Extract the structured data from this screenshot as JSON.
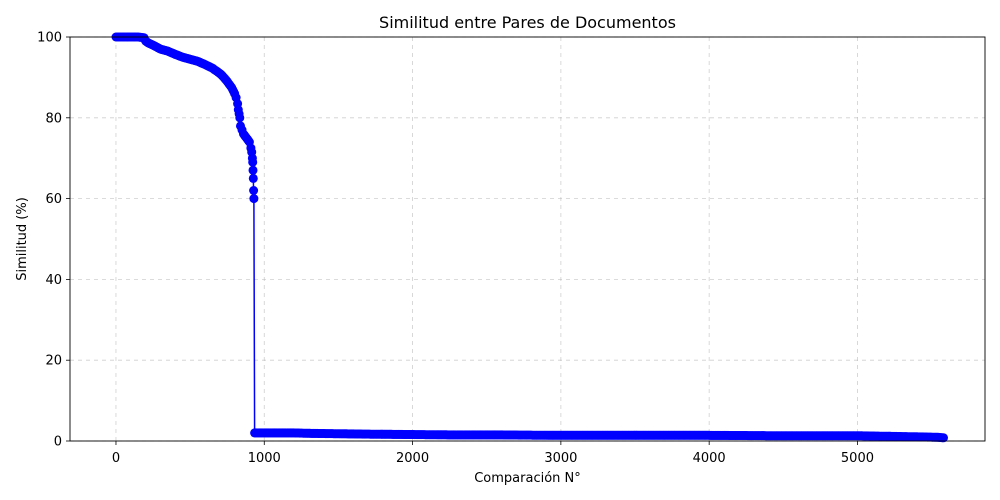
{
  "chart_data": {
    "type": "line",
    "title": "Similitud entre Pares de Documentos",
    "xlabel": "Comparación N°",
    "ylabel": "Similitud (%)",
    "xlim": [
      -310,
      5860
    ],
    "ylim": [
      0,
      100
    ],
    "xticks": [
      0,
      1000,
      2000,
      3000,
      4000,
      5000
    ],
    "yticks": [
      0,
      20,
      40,
      60,
      80,
      100
    ],
    "grid": true,
    "series": [
      {
        "color": "#0000ff",
        "marker": "circle",
        "x": [
          0,
          50,
          100,
          150,
          190,
          200,
          220,
          250,
          300,
          350,
          400,
          450,
          500,
          550,
          600,
          650,
          700,
          720,
          750,
          780,
          800,
          810,
          820,
          825,
          830,
          835,
          840,
          850,
          860,
          880,
          900,
          910,
          915,
          920,
          922,
          924,
          926,
          928,
          930,
          935,
          950,
          1000,
          1100,
          1200,
          1300,
          1500,
          1700,
          2000,
          2300,
          2600,
          3000,
          3500,
          4000,
          4500,
          5000,
          5150,
          5300,
          5450,
          5550,
          5580
        ],
        "y": [
          100,
          100,
          100,
          100,
          99.8,
          99,
          98.5,
          98,
          97,
          96.5,
          95.7,
          95,
          94.5,
          94,
          93.2,
          92.3,
          91,
          90.3,
          89,
          87.5,
          86,
          85,
          83.5,
          82,
          81,
          80,
          78,
          77,
          76,
          75,
          74,
          72.5,
          71.5,
          70,
          69,
          67,
          65,
          62,
          60,
          2.0,
          2.0,
          2.0,
          2.0,
          2.0,
          1.9,
          1.8,
          1.7,
          1.6,
          1.5,
          1.5,
          1.4,
          1.4,
          1.4,
          1.3,
          1.3,
          1.2,
          1.1,
          1.0,
          0.9,
          0.8
        ]
      }
    ]
  }
}
